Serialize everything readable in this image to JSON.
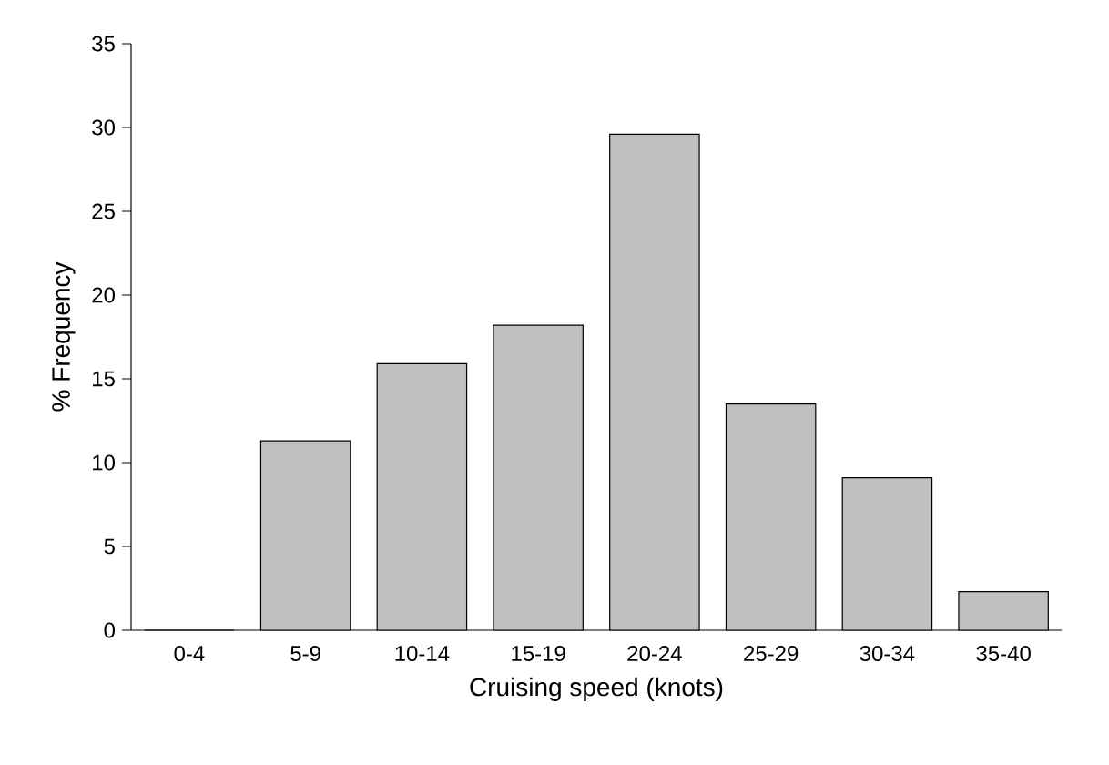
{
  "chart_data": {
    "type": "bar",
    "xlabel": "Cruising speed (knots)",
    "ylabel": "% Frequency",
    "categories": [
      "0-4",
      "5-9",
      "10-14",
      "15-19",
      "20-24",
      "25-29",
      "30-34",
      "35-40"
    ],
    "values": [
      0,
      11.3,
      15.9,
      18.2,
      29.6,
      13.5,
      9.1,
      2.3
    ],
    "color": "#c0c0c0",
    "ylim": [
      0,
      35
    ],
    "yticks": [
      0,
      5,
      10,
      15,
      20,
      25,
      30,
      35
    ]
  }
}
